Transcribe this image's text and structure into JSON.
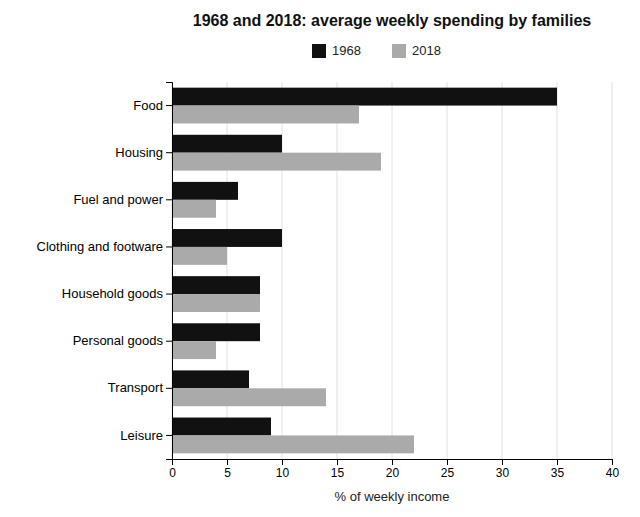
{
  "chart_data": {
    "type": "bar",
    "orientation": "horizontal",
    "title": "1968 and 2018: average weekly spending by families",
    "categories": [
      "Food",
      "Housing",
      "Fuel and power",
      "Clothing and footware",
      "Household goods",
      "Personal goods",
      "Transport",
      "Leisure"
    ],
    "series": [
      {
        "name": "1968",
        "color": "#111111",
        "values": [
          35,
          10,
          6,
          10,
          8,
          8,
          7,
          9
        ]
      },
      {
        "name": "2018",
        "color": "#aaaaaa",
        "values": [
          17,
          19,
          4,
          5,
          8,
          4,
          14,
          22
        ]
      }
    ],
    "xlabel": "% of weekly income",
    "xlim": [
      0,
      40
    ],
    "xticks": [
      0,
      5,
      10,
      15,
      20,
      25,
      30,
      35,
      40
    ],
    "grid": true,
    "legend": "upper center"
  }
}
